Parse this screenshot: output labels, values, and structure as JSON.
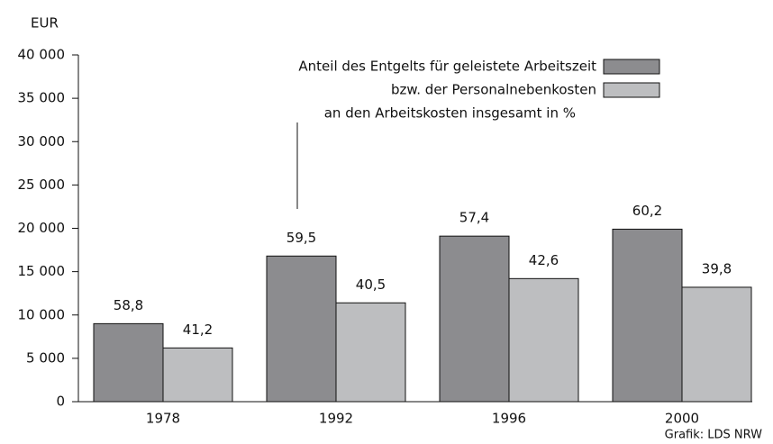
{
  "chart_data": {
    "type": "bar",
    "y_label": "EUR",
    "categories": [
      "1978",
      "1992",
      "1996",
      "2000"
    ],
    "series": [
      {
        "name": "Anteil des Entgelts für geleistete Arbeitszeit",
        "color": "#8c8c8f",
        "values": [
          9000,
          16800,
          19100,
          19900
        ],
        "share_labels": [
          "58,8",
          "59,5",
          "57,4",
          "60,2"
        ]
      },
      {
        "name": "bzw. der Personalnebenkosten",
        "color": "#bdbec0",
        "values": [
          6200,
          11400,
          14200,
          13200
        ],
        "share_labels": [
          "41,2",
          "40,5",
          "42,6",
          "39,8"
        ]
      }
    ],
    "legend_note": "an den Arbeitskosten insgesamt in %",
    "source": "Grafik: LDS NRW",
    "ylim": [
      0,
      40000
    ],
    "yticks": [
      0,
      {
        "value": 5000,
        "label": "5 000"
      },
      {
        "value": 10000,
        "label": "10 000"
      },
      {
        "value": 15000,
        "label": "15 000"
      },
      {
        "value": 20000,
        "label": "20 000"
      },
      {
        "value": 25000,
        "label": "25 000"
      },
      {
        "value": 30000,
        "label": "30 000"
      },
      {
        "value": 35000,
        "label": "35 000"
      },
      {
        "value": 40000,
        "label": "40 000"
      }
    ]
  }
}
